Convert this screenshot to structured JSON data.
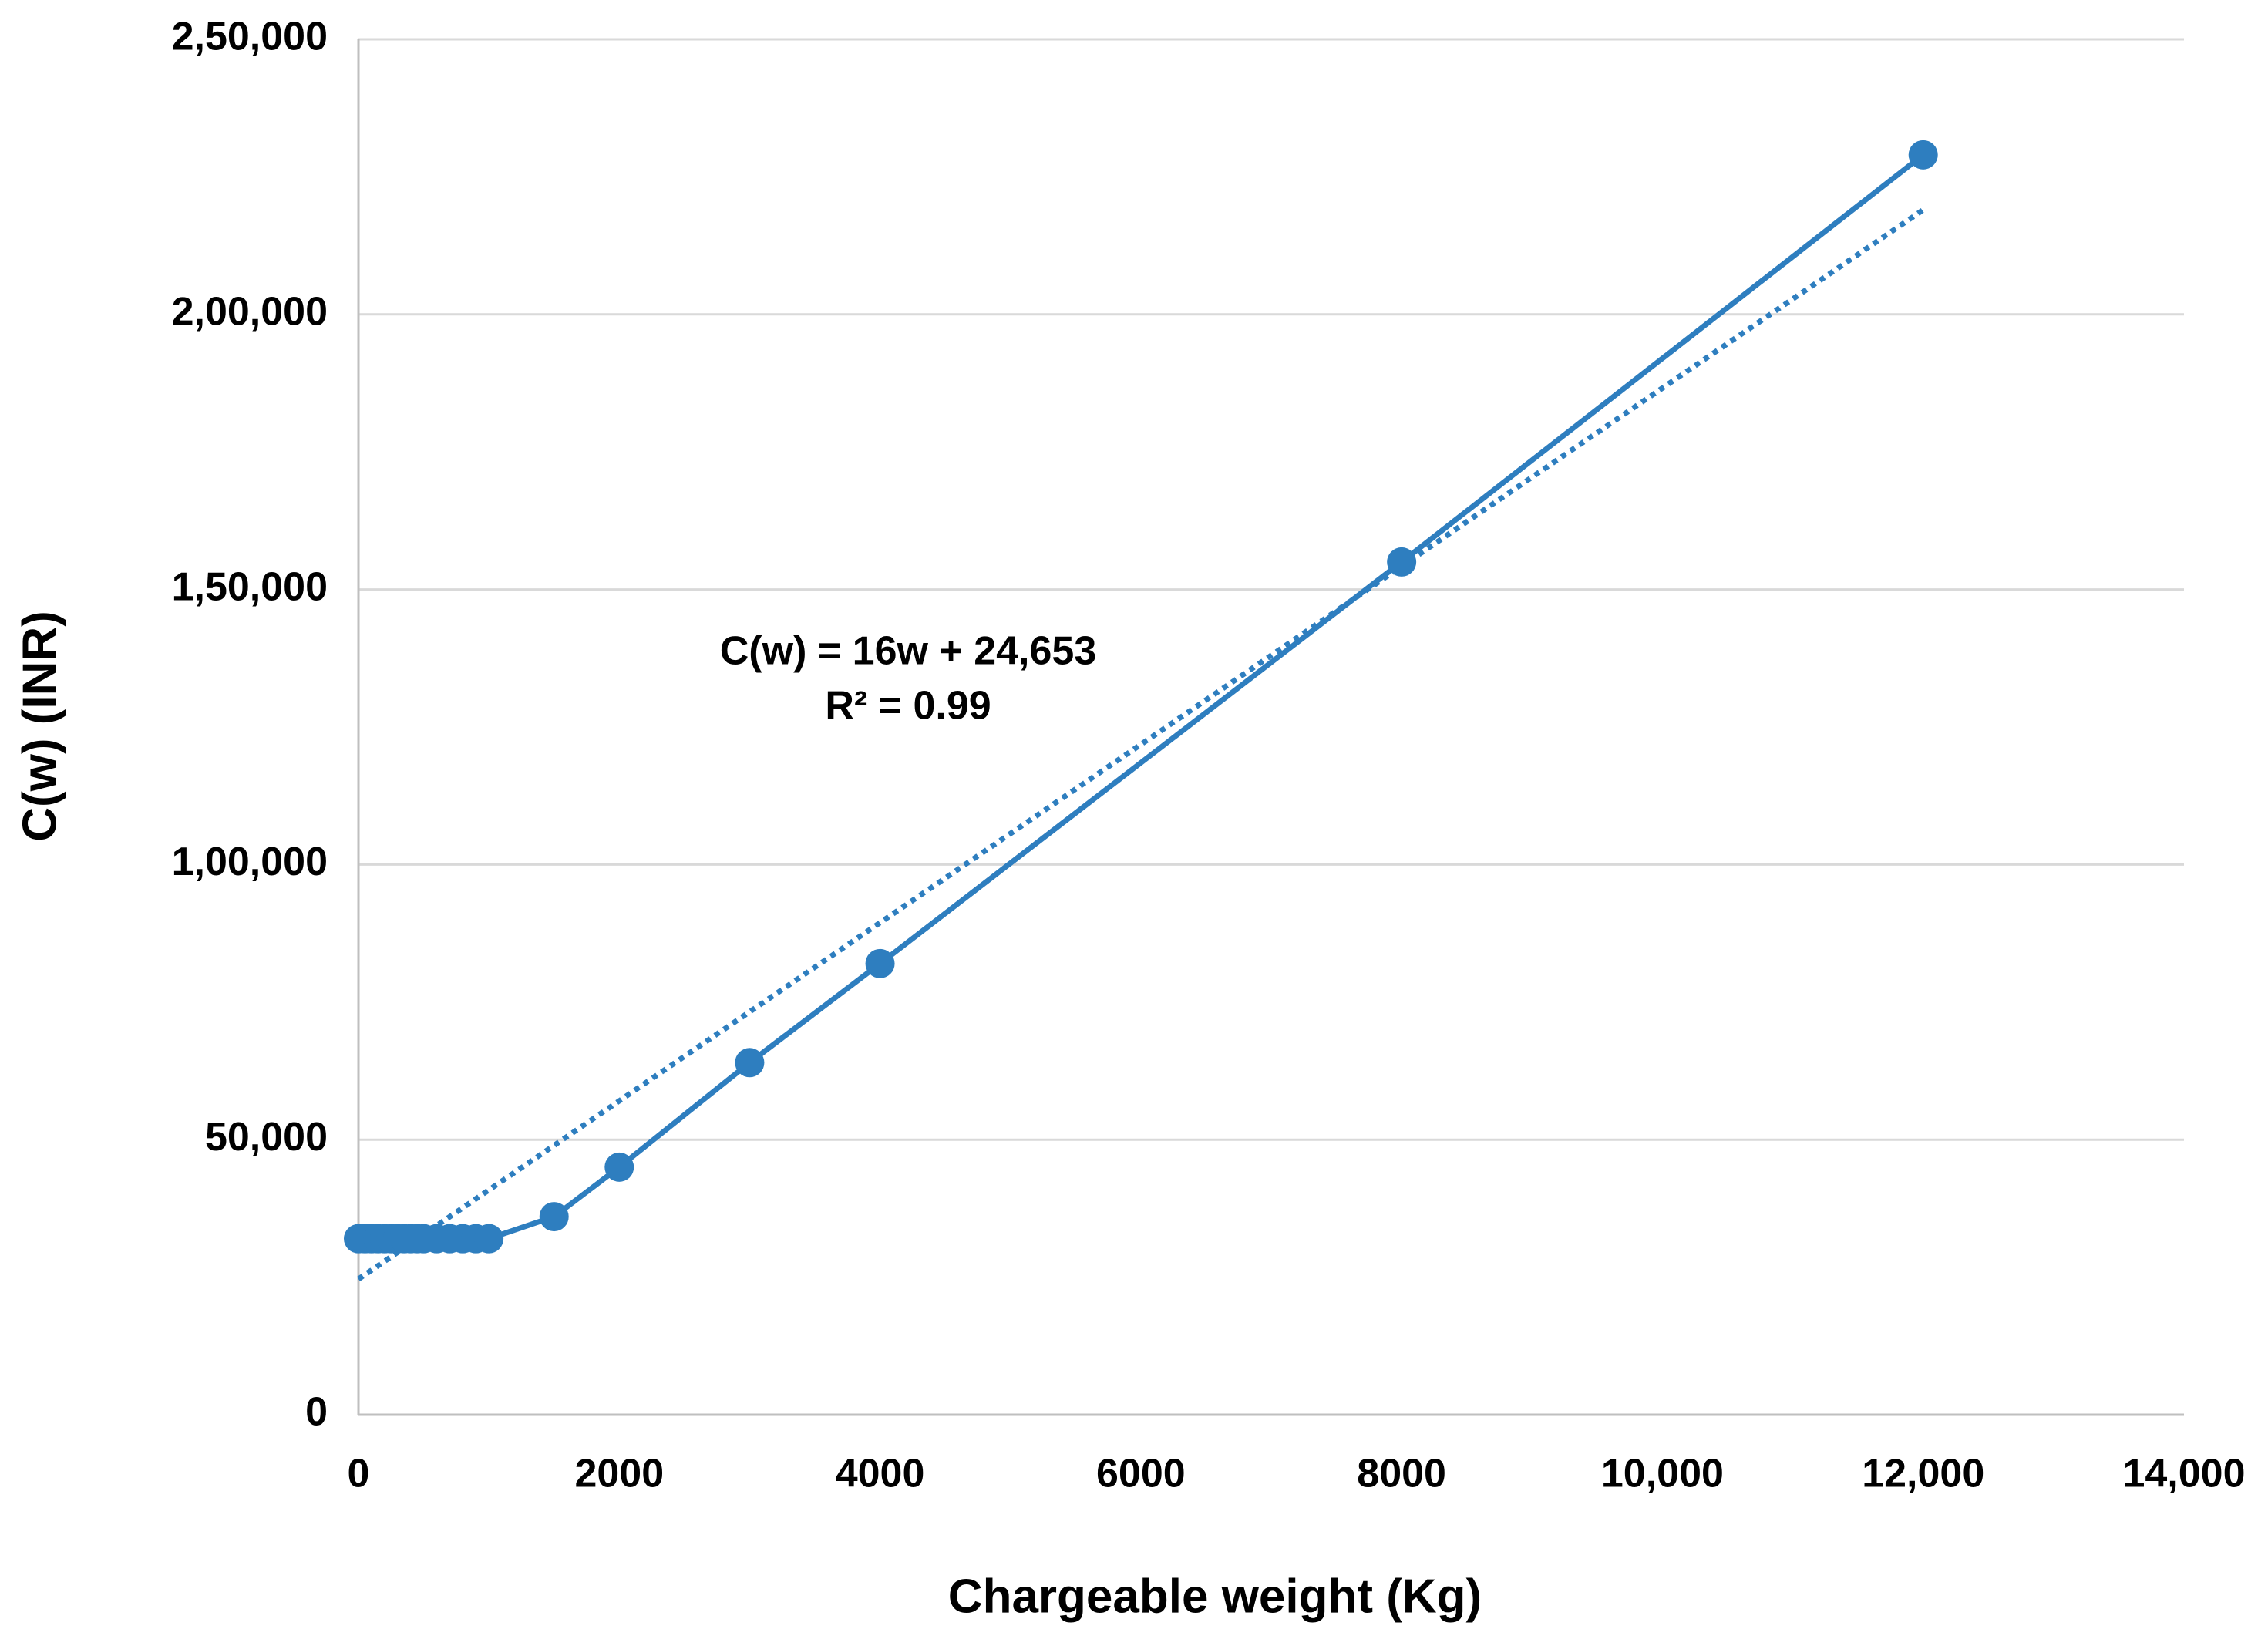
{
  "chart_data": {
    "type": "line",
    "x_label": "Chargeable weight (Kg)",
    "y_label": "C(w)  (INR)",
    "annotations": [
      "C(w) = 16w + 24,653",
      "R² = 0.99"
    ],
    "x": [
      0,
      50,
      100,
      150,
      200,
      250,
      300,
      350,
      400,
      450,
      500,
      600,
      700,
      800,
      900,
      1000,
      1500,
      2000,
      3000,
      4000,
      8000,
      12000
    ],
    "values": [
      32000,
      32000,
      32000,
      32000,
      32000,
      32000,
      32000,
      32000,
      32000,
      32000,
      32000,
      32000,
      32000,
      32000,
      32000,
      32000,
      36000,
      45000,
      64000,
      82000,
      155000,
      229000
    ],
    "color": "#2e7ebf",
    "trendline": {
      "style": "dotted",
      "color": "#2e7ebf",
      "x": [
        0,
        12000
      ],
      "values": [
        24653,
        219000
      ]
    },
    "xlim": [
      0,
      14000
    ],
    "xticks": [
      0,
      2000,
      4000,
      6000,
      8000,
      {
        "value": 10000,
        "label": "10,000"
      },
      {
        "value": 12000,
        "label": "12,000"
      },
      {
        "value": 14000,
        "label": "14,000"
      }
    ],
    "ylim": [
      0,
      250000
    ],
    "yticks": [
      0,
      {
        "value": 50000,
        "label": "50,000"
      },
      {
        "value": 100000,
        "label": "1,00,000"
      },
      {
        "value": 150000,
        "label": "1,50,000"
      },
      {
        "value": 200000,
        "label": "2,00,000"
      },
      {
        "value": 250000,
        "label": "2,50,000"
      }
    ],
    "grid": true
  }
}
